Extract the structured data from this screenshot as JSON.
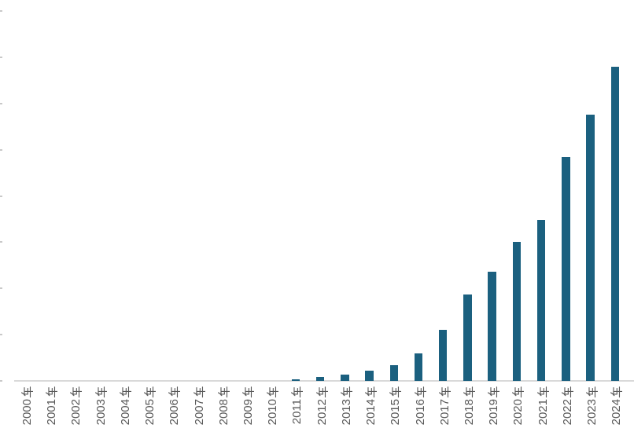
{
  "chart_data": {
    "type": "bar",
    "title": "",
    "categories": [
      "2000年",
      "2001年",
      "2002年",
      "2003年",
      "2004年",
      "2005年",
      "2006年",
      "2007年",
      "2008年",
      "2009年",
      "2010年",
      "2011年",
      "2012年",
      "2013年",
      "2014年",
      "2015年",
      "2016年",
      "2017年",
      "2018年",
      "2019年",
      "2020年",
      "2021年",
      "2022年",
      "2023年",
      "2024年"
    ],
    "values": [
      0,
      0,
      0,
      0,
      0,
      0,
      0,
      0,
      0,
      0,
      0,
      2,
      4,
      7,
      11,
      17,
      30,
      55,
      93,
      118,
      150,
      174,
      242,
      288,
      340
    ],
    "xlabel": "",
    "ylabel": "",
    "ylim": [
      0,
      400
    ],
    "ytick_interval": 50,
    "y_axis": {
      "tick_count": 9,
      "tick_labels_visible": false
    },
    "x_label_rotation_deg": -90,
    "grid": false,
    "legend": false,
    "colors": {
      "bar": "#1B607F",
      "axis_line": "#D9D9D9",
      "tick_mark": "#C9C9C9",
      "label_text": "#595959",
      "background": "#FFFFFF"
    }
  }
}
